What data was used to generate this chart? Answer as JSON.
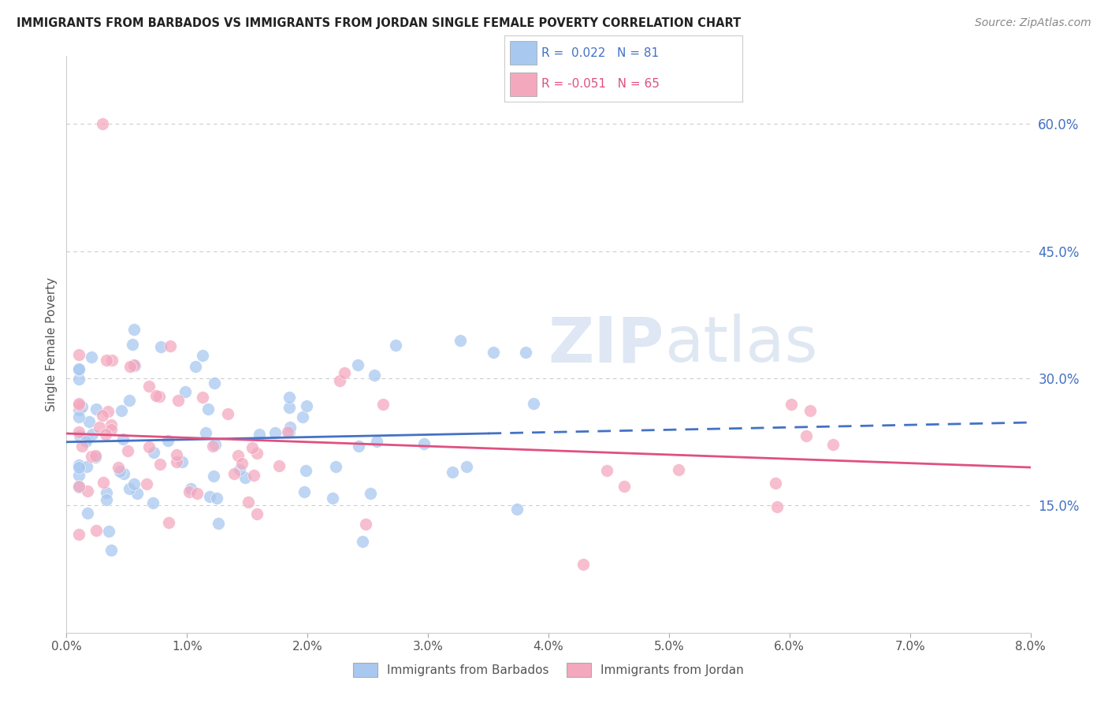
{
  "title": "IMMIGRANTS FROM BARBADOS VS IMMIGRANTS FROM JORDAN SINGLE FEMALE POVERTY CORRELATION CHART",
  "source": "Source: ZipAtlas.com",
  "ylabel": "Single Female Poverty",
  "right_yticks": [
    0.15,
    0.3,
    0.45,
    0.6
  ],
  "right_yticklabels": [
    "15.0%",
    "30.0%",
    "45.0%",
    "60.0%"
  ],
  "xlim": [
    0.0,
    0.08
  ],
  "ylim": [
    0.0,
    0.68
  ],
  "barbados_color": "#a8c8f0",
  "jordan_color": "#f4a8be",
  "barbados_line_color": "#4472c4",
  "jordan_line_color": "#e05080",
  "watermark_color": "#d0dff0",
  "background_color": "#ffffff",
  "grid_color": "#cccccc",
  "R_barbados": 0.022,
  "N_barbados": 81,
  "R_jordan": -0.051,
  "N_jordan": 65,
  "legend_r1": "R =  0.022",
  "legend_n1": "N = 81",
  "legend_r2": "R = -0.051",
  "legend_n2": "N = 65"
}
